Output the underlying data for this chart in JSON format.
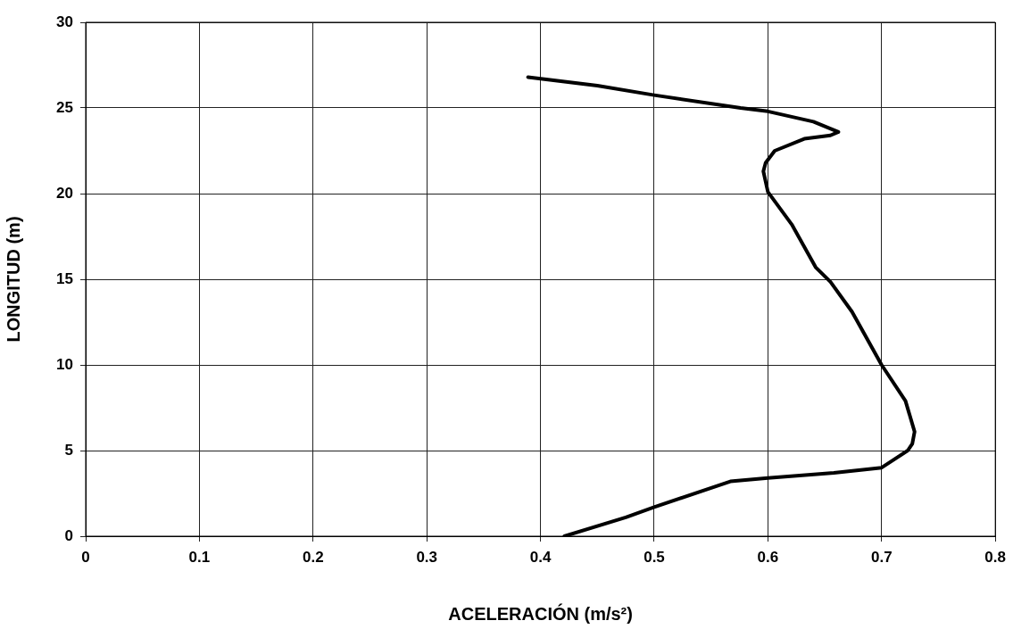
{
  "chart_data": {
    "type": "line",
    "xlabel": "ACELERACIÓN (m/s²)",
    "ylabel": "LONGITUD (m)",
    "series": [
      {
        "color": "#000000",
        "x": [
          0.389,
          0.45,
          0.5,
          0.576,
          0.6,
          0.64,
          0.662,
          0.655,
          0.632,
          0.606,
          0.598,
          0.596,
          0.6,
          0.621,
          0.642,
          0.655,
          0.674,
          0.7,
          0.721,
          0.729,
          0.727,
          0.723,
          0.7,
          0.658,
          0.6,
          0.567,
          0.5,
          0.475,
          0.421
        ],
        "values": [
          26.8,
          26.3,
          25.75,
          25.0,
          24.8,
          24.2,
          23.6,
          23.4,
          23.2,
          22.5,
          21.8,
          21.3,
          20.1,
          18.2,
          15.7,
          14.85,
          13.1,
          10,
          7.9,
          6.1,
          5.4,
          5.0,
          4.0,
          3.7,
          3.4,
          3.2,
          1.7,
          1.1,
          0
        ]
      }
    ],
    "xlim": [
      0,
      0.8
    ],
    "xticks": [
      0,
      0.1,
      0.2,
      0.3,
      0.4,
      0.5,
      0.6,
      0.7,
      0.8
    ],
    "ylim": [
      0,
      30
    ],
    "yticks": [
      0,
      5,
      10,
      15,
      20,
      25,
      30
    ],
    "grid": true,
    "marker": "none",
    "line_style": "solid"
  }
}
